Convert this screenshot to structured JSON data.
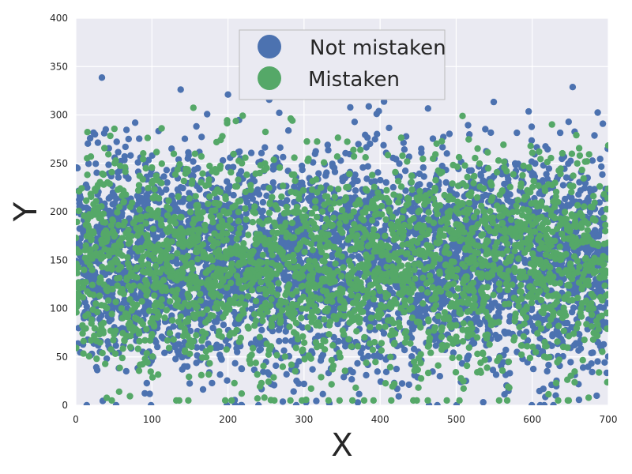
{
  "chart_data": {
    "type": "scatter",
    "title": "",
    "xlabel": "X",
    "ylabel": "Y",
    "xlim": [
      0,
      700
    ],
    "ylim": [
      0,
      400
    ],
    "x_ticks": [
      0,
      100,
      200,
      300,
      400,
      500,
      600,
      700
    ],
    "y_ticks": [
      0,
      50,
      100,
      150,
      200,
      250,
      300,
      350,
      400
    ],
    "grid": true,
    "legend_position": "top-center",
    "background_color": "#eaeaf2",
    "series": [
      {
        "name": "Not mistaken",
        "color": "#4c72b0",
        "points_shown": 4000,
        "x_range": [
          0,
          700
        ],
        "y_range": [
          0,
          345
        ],
        "y_center": 150
      },
      {
        "name": "Mistaken",
        "color": "#55a868",
        "points_shown": 2600,
        "x_range": [
          0,
          700
        ],
        "y_range": [
          5,
          335
        ],
        "y_center": 145
      }
    ]
  }
}
